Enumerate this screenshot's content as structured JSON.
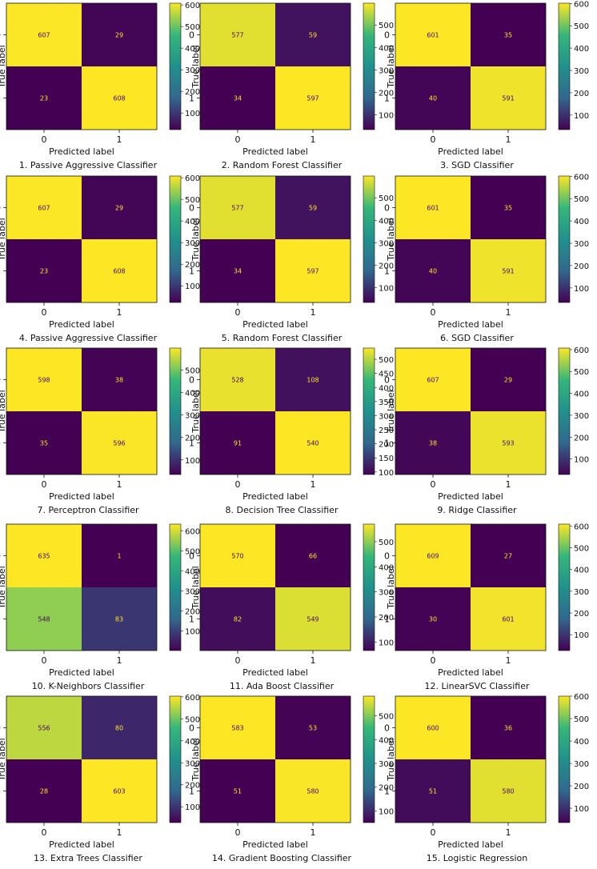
{
  "palette": {
    "low": "#440154",
    "mid_low": "#31688e",
    "mid": "#21918c",
    "mid_high": "#35b779",
    "high": "#fde725",
    "dark_text": "#440154",
    "light_text": "#fde725",
    "axis": "#111111"
  },
  "common": {
    "xlabel": "Predicted label",
    "ylabel": "True label",
    "class_labels": [
      "0",
      "1"
    ]
  },
  "chart_data": [
    {
      "type": "heatmap",
      "title": "1. Passive Aggressive Classifier",
      "matrix": [
        [
          607,
          29
        ],
        [
          23,
          608
        ]
      ],
      "colorbar": {
        "range": [
          23,
          608
        ],
        "ticks": [
          100,
          200,
          300,
          400,
          500,
          600
        ]
      }
    },
    {
      "type": "heatmap",
      "title": "2. Random Forest Classifier",
      "matrix": [
        [
          577,
          59
        ],
        [
          34,
          597
        ]
      ],
      "colorbar": {
        "range": [
          34,
          597
        ],
        "ticks": [
          100,
          200,
          300,
          400,
          500
        ]
      }
    },
    {
      "type": "heatmap",
      "title": "3. SGD Classifier",
      "matrix": [
        [
          601,
          35
        ],
        [
          40,
          591
        ]
      ],
      "colorbar": {
        "range": [
          35,
          601
        ],
        "ticks": [
          100,
          200,
          300,
          400,
          500,
          600
        ]
      }
    },
    {
      "type": "heatmap",
      "title": "4. Passive Aggressive Classifier",
      "matrix": [
        [
          607,
          29
        ],
        [
          23,
          608
        ]
      ],
      "colorbar": {
        "range": [
          23,
          608
        ],
        "ticks": [
          100,
          200,
          300,
          400,
          500,
          600
        ]
      }
    },
    {
      "type": "heatmap",
      "title": "5. Random Forest Classifier",
      "matrix": [
        [
          577,
          59
        ],
        [
          34,
          597
        ]
      ],
      "colorbar": {
        "range": [
          34,
          597
        ],
        "ticks": [
          100,
          200,
          300,
          400,
          500
        ]
      }
    },
    {
      "type": "heatmap",
      "title": "6. SGD Classifier",
      "matrix": [
        [
          601,
          35
        ],
        [
          40,
          591
        ]
      ],
      "colorbar": {
        "range": [
          35,
          601
        ],
        "ticks": [
          100,
          200,
          300,
          400,
          500,
          600
        ]
      }
    },
    {
      "type": "heatmap",
      "title": "7. Perceptron Classifier",
      "matrix": [
        [
          598,
          38
        ],
        [
          35,
          596
        ]
      ],
      "colorbar": {
        "range": [
          35,
          598
        ],
        "ticks": [
          100,
          200,
          300,
          400,
          500
        ]
      }
    },
    {
      "type": "heatmap",
      "title": "8. Decision Tree Classifier",
      "matrix": [
        [
          528,
          108
        ],
        [
          91,
          540
        ]
      ],
      "colorbar": {
        "range": [
          91,
          540
        ],
        "ticks": [
          100,
          150,
          200,
          250,
          300,
          350,
          400,
          450,
          500
        ]
      }
    },
    {
      "type": "heatmap",
      "title": "9. Ridge Classifier",
      "matrix": [
        [
          607,
          29
        ],
        [
          38,
          593
        ]
      ],
      "colorbar": {
        "range": [
          29,
          607
        ],
        "ticks": [
          100,
          200,
          300,
          400,
          500,
          600
        ]
      }
    },
    {
      "type": "heatmap",
      "title": "10. K-Neighbors Classifier",
      "matrix": [
        [
          635,
          1
        ],
        [
          548,
          83
        ]
      ],
      "colorbar": {
        "range": [
          1,
          635
        ],
        "ticks": [
          100,
          200,
          300,
          400,
          500,
          600
        ]
      }
    },
    {
      "type": "heatmap",
      "title": "11. Ada Boost Classifier",
      "matrix": [
        [
          570,
          66
        ],
        [
          82,
          549
        ]
      ],
      "colorbar": {
        "range": [
          66,
          570
        ],
        "ticks": [
          100,
          200,
          300,
          400,
          500
        ]
      }
    },
    {
      "type": "heatmap",
      "title": "12. LinearSVC Classifier",
      "matrix": [
        [
          609,
          27
        ],
        [
          30,
          601
        ]
      ],
      "colorbar": {
        "range": [
          27,
          609
        ],
        "ticks": [
          100,
          200,
          300,
          400,
          500,
          600
        ]
      }
    },
    {
      "type": "heatmap",
      "title": "13. Extra Trees Classifier",
      "matrix": [
        [
          556,
          80
        ],
        [
          28,
          603
        ]
      ],
      "colorbar": {
        "range": [
          28,
          603
        ],
        "ticks": [
          100,
          200,
          300,
          400,
          500,
          600
        ]
      }
    },
    {
      "type": "heatmap",
      "title": "14. Gradient Boosting Classifier",
      "matrix": [
        [
          583,
          53
        ],
        [
          51,
          580
        ]
      ],
      "colorbar": {
        "range": [
          51,
          583
        ],
        "ticks": [
          100,
          200,
          300,
          400,
          500
        ]
      }
    },
    {
      "type": "heatmap",
      "title": "15. Logistic Regression",
      "matrix": [
        [
          600,
          36
        ],
        [
          51,
          580
        ]
      ],
      "colorbar": {
        "range": [
          36,
          600
        ],
        "ticks": [
          100,
          200,
          300,
          400,
          500,
          600
        ]
      }
    }
  ]
}
